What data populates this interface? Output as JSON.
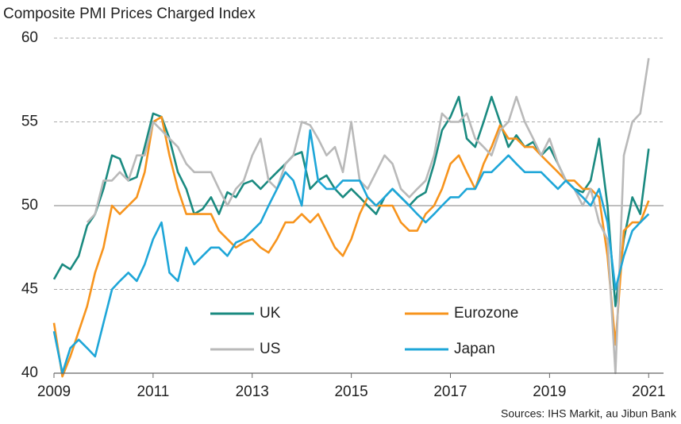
{
  "chart_data": {
    "type": "line",
    "title": "Composite  PMI Prices Charged Index",
    "source": "Sources: IHS Markit, au Jibun Bank",
    "x": [
      2009,
      2009.17,
      2009.33,
      2009.5,
      2009.67,
      2009.83,
      2010,
      2010.17,
      2010.33,
      2010.5,
      2010.67,
      2010.83,
      2011,
      2011.17,
      2011.33,
      2011.5,
      2011.67,
      2011.83,
      2012,
      2012.17,
      2012.33,
      2012.5,
      2012.67,
      2012.83,
      2013,
      2013.17,
      2013.33,
      2013.5,
      2013.67,
      2013.83,
      2014,
      2014.17,
      2014.33,
      2014.5,
      2014.67,
      2014.83,
      2015,
      2015.17,
      2015.33,
      2015.5,
      2015.67,
      2015.83,
      2016,
      2016.17,
      2016.33,
      2016.5,
      2016.67,
      2016.83,
      2017,
      2017.17,
      2017.33,
      2017.5,
      2017.67,
      2017.83,
      2018,
      2018.17,
      2018.33,
      2018.5,
      2018.67,
      2018.83,
      2019,
      2019.17,
      2019.33,
      2019.5,
      2019.67,
      2019.83,
      2020,
      2020.17,
      2020.33,
      2020.5,
      2020.67,
      2020.83,
      2021
    ],
    "series": [
      {
        "name": "UK",
        "color": "#1a8a80",
        "values": [
          45.6,
          46.5,
          46.2,
          47,
          48.8,
          49.5,
          51,
          53,
          52.8,
          51.5,
          51.7,
          53.5,
          55.5,
          55.3,
          54,
          52,
          51,
          49.5,
          49.8,
          50.5,
          49.5,
          50.8,
          50.5,
          51.3,
          51.5,
          51,
          51.5,
          52,
          52.5,
          53,
          53.2,
          51,
          51.5,
          51.8,
          51,
          50.5,
          51,
          50.5,
          50,
          49.5,
          50.5,
          51,
          50.5,
          50,
          50.5,
          50.8,
          52.5,
          54.5,
          55.3,
          56.5,
          54,
          53.5,
          55,
          56.5,
          55,
          53.5,
          54.2,
          53.5,
          53.8,
          53,
          53.5,
          52.5,
          51.5,
          51,
          50.8,
          51.5,
          54,
          50,
          44,
          48,
          50.5,
          49.5,
          53.4
        ]
      },
      {
        "name": "Eurozone",
        "color": "#f7941d",
        "values": [
          43,
          39.8,
          41,
          42.5,
          44,
          46,
          47.5,
          50,
          49.5,
          50,
          50.5,
          52,
          55,
          55.3,
          53,
          51,
          49.5,
          49.5,
          49.5,
          49.5,
          48.5,
          48,
          47.5,
          47.8,
          48,
          47.5,
          47.2,
          48,
          49,
          49,
          49.5,
          49,
          49.5,
          48.5,
          47.5,
          47,
          48,
          49.5,
          50.5,
          50,
          50,
          50,
          49,
          48.5,
          48.5,
          49.5,
          50,
          51,
          52.5,
          53,
          52,
          51,
          52.5,
          53.5,
          54.8,
          54,
          54,
          53.5,
          53.5,
          53,
          52.5,
          52,
          51.5,
          51.5,
          51,
          51,
          50.5,
          47,
          41.7,
          48.5,
          49,
          49,
          50.3
        ]
      },
      {
        "name": "US",
        "color": "#b9b9b9",
        "values": [
          null,
          null,
          null,
          null,
          49,
          49.5,
          51.5,
          51.5,
          52,
          51.5,
          53,
          53,
          55,
          54.5,
          54,
          53.5,
          52.5,
          52,
          52,
          52,
          51,
          50,
          51,
          51.5,
          53,
          54,
          51.5,
          51,
          52.5,
          53,
          55,
          54.8,
          54,
          53,
          53.5,
          52,
          55,
          51.5,
          51,
          52,
          53,
          52.5,
          51,
          50.5,
          51,
          51.5,
          53,
          55.5,
          55,
          55,
          55.5,
          54,
          53.5,
          53,
          54.5,
          55,
          56.5,
          55,
          54,
          53,
          54,
          52.5,
          51.5,
          51,
          50,
          51,
          49,
          48,
          40,
          53,
          55,
          55.5,
          58.8
        ]
      },
      {
        "name": "Japan",
        "color": "#1ea6d8",
        "values": [
          42.5,
          40,
          41.5,
          42,
          41.5,
          41,
          43,
          45,
          45.5,
          46,
          45.5,
          46.5,
          48,
          49,
          46,
          45.5,
          47.5,
          46.5,
          47,
          47.5,
          47.5,
          47,
          47.8,
          48,
          48.5,
          49,
          50,
          51,
          52,
          51.5,
          50,
          54.5,
          51.5,
          51,
          51,
          51.5,
          51.5,
          51.5,
          50.5,
          50,
          50.5,
          51,
          50.5,
          50,
          49.5,
          49,
          49.5,
          50,
          50.5,
          50.5,
          51,
          51,
          52,
          52,
          52.5,
          53,
          52.5,
          52,
          52,
          52,
          51.5,
          51,
          51.5,
          51,
          50.5,
          50,
          51,
          49,
          45,
          47,
          48.5,
          49,
          49.5
        ]
      }
    ],
    "xlim": [
      2009,
      2021.3
    ],
    "xticks": [
      2009,
      2011,
      2013,
      2015,
      2017,
      2019,
      2021
    ],
    "ylim": [
      40,
      60
    ],
    "yticks": [
      40,
      45,
      50,
      55,
      60
    ],
    "reference_line": 50,
    "grid": true
  }
}
